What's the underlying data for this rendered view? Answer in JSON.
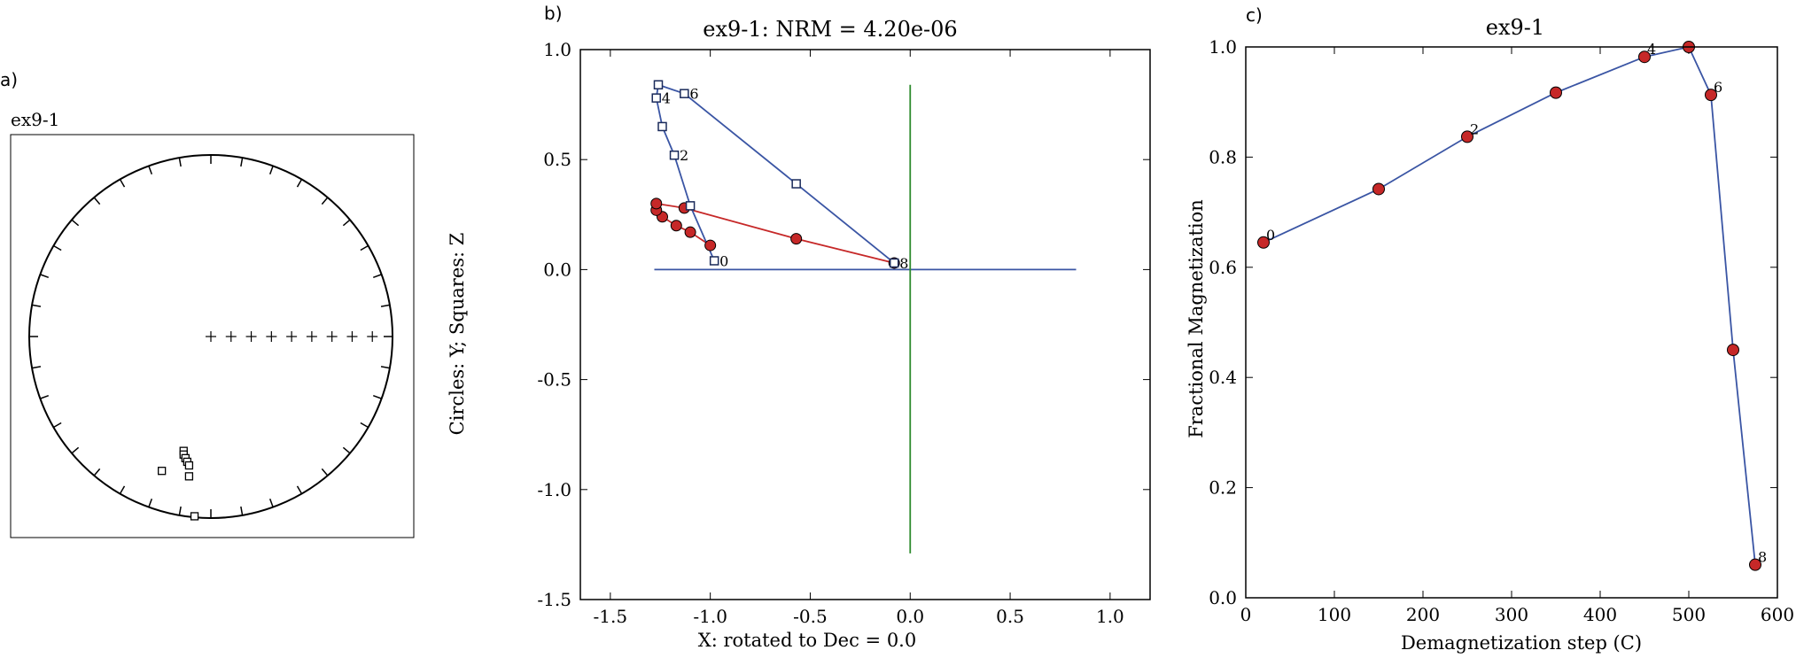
{
  "panel_labels": {
    "a": "a)",
    "b": "b)",
    "c": "c)"
  },
  "chart_data": [
    {
      "type": "scatter",
      "subtype": "equal-area stereonet",
      "title": "ex9-1",
      "crosses_count": 9,
      "open_squares": [
        {
          "x": -0.15,
          "y": -0.63
        },
        {
          "x": -0.15,
          "y": -0.65
        },
        {
          "x": -0.14,
          "y": -0.67
        },
        {
          "x": -0.13,
          "y": -0.69
        },
        {
          "x": -0.12,
          "y": -0.71
        },
        {
          "x": -0.12,
          "y": -0.77
        },
        {
          "x": -0.27,
          "y": -0.74
        },
        {
          "x": -0.09,
          "y": -0.99
        }
      ]
    },
    {
      "type": "line",
      "title": "ex9-1: NRM = 4.20e-06",
      "xlabel": "X: rotated to Dec = 0.0",
      "ylabel": "Circles: Y; Squares: Z",
      "xlim": [
        -1.65,
        1.2
      ],
      "ylim": [
        -1.5,
        1.0
      ],
      "xticks": [
        "-1.5",
        "-1.0",
        "-0.5",
        "0.0",
        "0.5",
        "1.0"
      ],
      "yticks": [
        "1.0",
        "0.5",
        "0.0",
        "-0.5",
        "-1.0",
        "-1.5"
      ],
      "axis_lines": {
        "horizontal": {
          "x": [
            -1.28,
            0.83
          ],
          "y": 0.0,
          "color": "#3a55a4"
        },
        "vertical": {
          "x": 0.0,
          "y": [
            -1.29,
            0.84
          ],
          "color": "#2e8b2e"
        }
      },
      "series": [
        {
          "name": "Y",
          "marker": "circle",
          "color": "#c62828",
          "x": [
            -1.0,
            -1.1,
            -1.17,
            -1.24,
            -1.27,
            -1.27,
            -1.13,
            -0.57,
            -0.08
          ],
          "y": [
            0.11,
            0.17,
            0.2,
            0.24,
            0.27,
            0.3,
            0.28,
            0.14,
            0.03
          ]
        },
        {
          "name": "Z",
          "marker": "square",
          "color": "#3a55a4",
          "x": [
            -0.98,
            -1.1,
            -1.18,
            -1.24,
            -1.27,
            -1.26,
            -1.13,
            -0.57,
            -0.08
          ],
          "y": [
            0.04,
            0.29,
            0.52,
            0.65,
            0.78,
            0.84,
            0.8,
            0.39,
            0.03
          ]
        }
      ],
      "point_labels": [
        {
          "series": 1,
          "index": 0,
          "text": "0"
        },
        {
          "series": 1,
          "index": 2,
          "text": "2"
        },
        {
          "series": 1,
          "index": 4,
          "text": "4"
        },
        {
          "series": 1,
          "index": 6,
          "text": "6"
        },
        {
          "series": 1,
          "index": 8,
          "text": "8"
        }
      ]
    },
    {
      "type": "line",
      "title": "ex9-1",
      "xlabel": "Demagnetization step (C)",
      "ylabel": "Fractional Magnetization",
      "xlim": [
        0,
        600
      ],
      "ylim": [
        0,
        1.0
      ],
      "xticks": [
        "0",
        "100",
        "200",
        "300",
        "400",
        "500",
        "600"
      ],
      "yticks": [
        "0.0",
        "0.2",
        "0.4",
        "0.6",
        "0.8",
        "1.0"
      ],
      "series": [
        {
          "marker": "circle",
          "line_color": "#3a55a4",
          "marker_color": "#c62828",
          "x": [
            20,
            150,
            250,
            350,
            450,
            500,
            525,
            550,
            575
          ],
          "y": [
            0.645,
            0.742,
            0.837,
            0.917,
            0.982,
            1.0,
            0.913,
            0.45,
            0.06
          ]
        }
      ],
      "point_labels": [
        {
          "index": 0,
          "text": "0"
        },
        {
          "index": 2,
          "text": "2"
        },
        {
          "index": 4,
          "text": "4"
        },
        {
          "index": 6,
          "text": "6"
        },
        {
          "index": 8,
          "text": "8"
        }
      ]
    }
  ]
}
